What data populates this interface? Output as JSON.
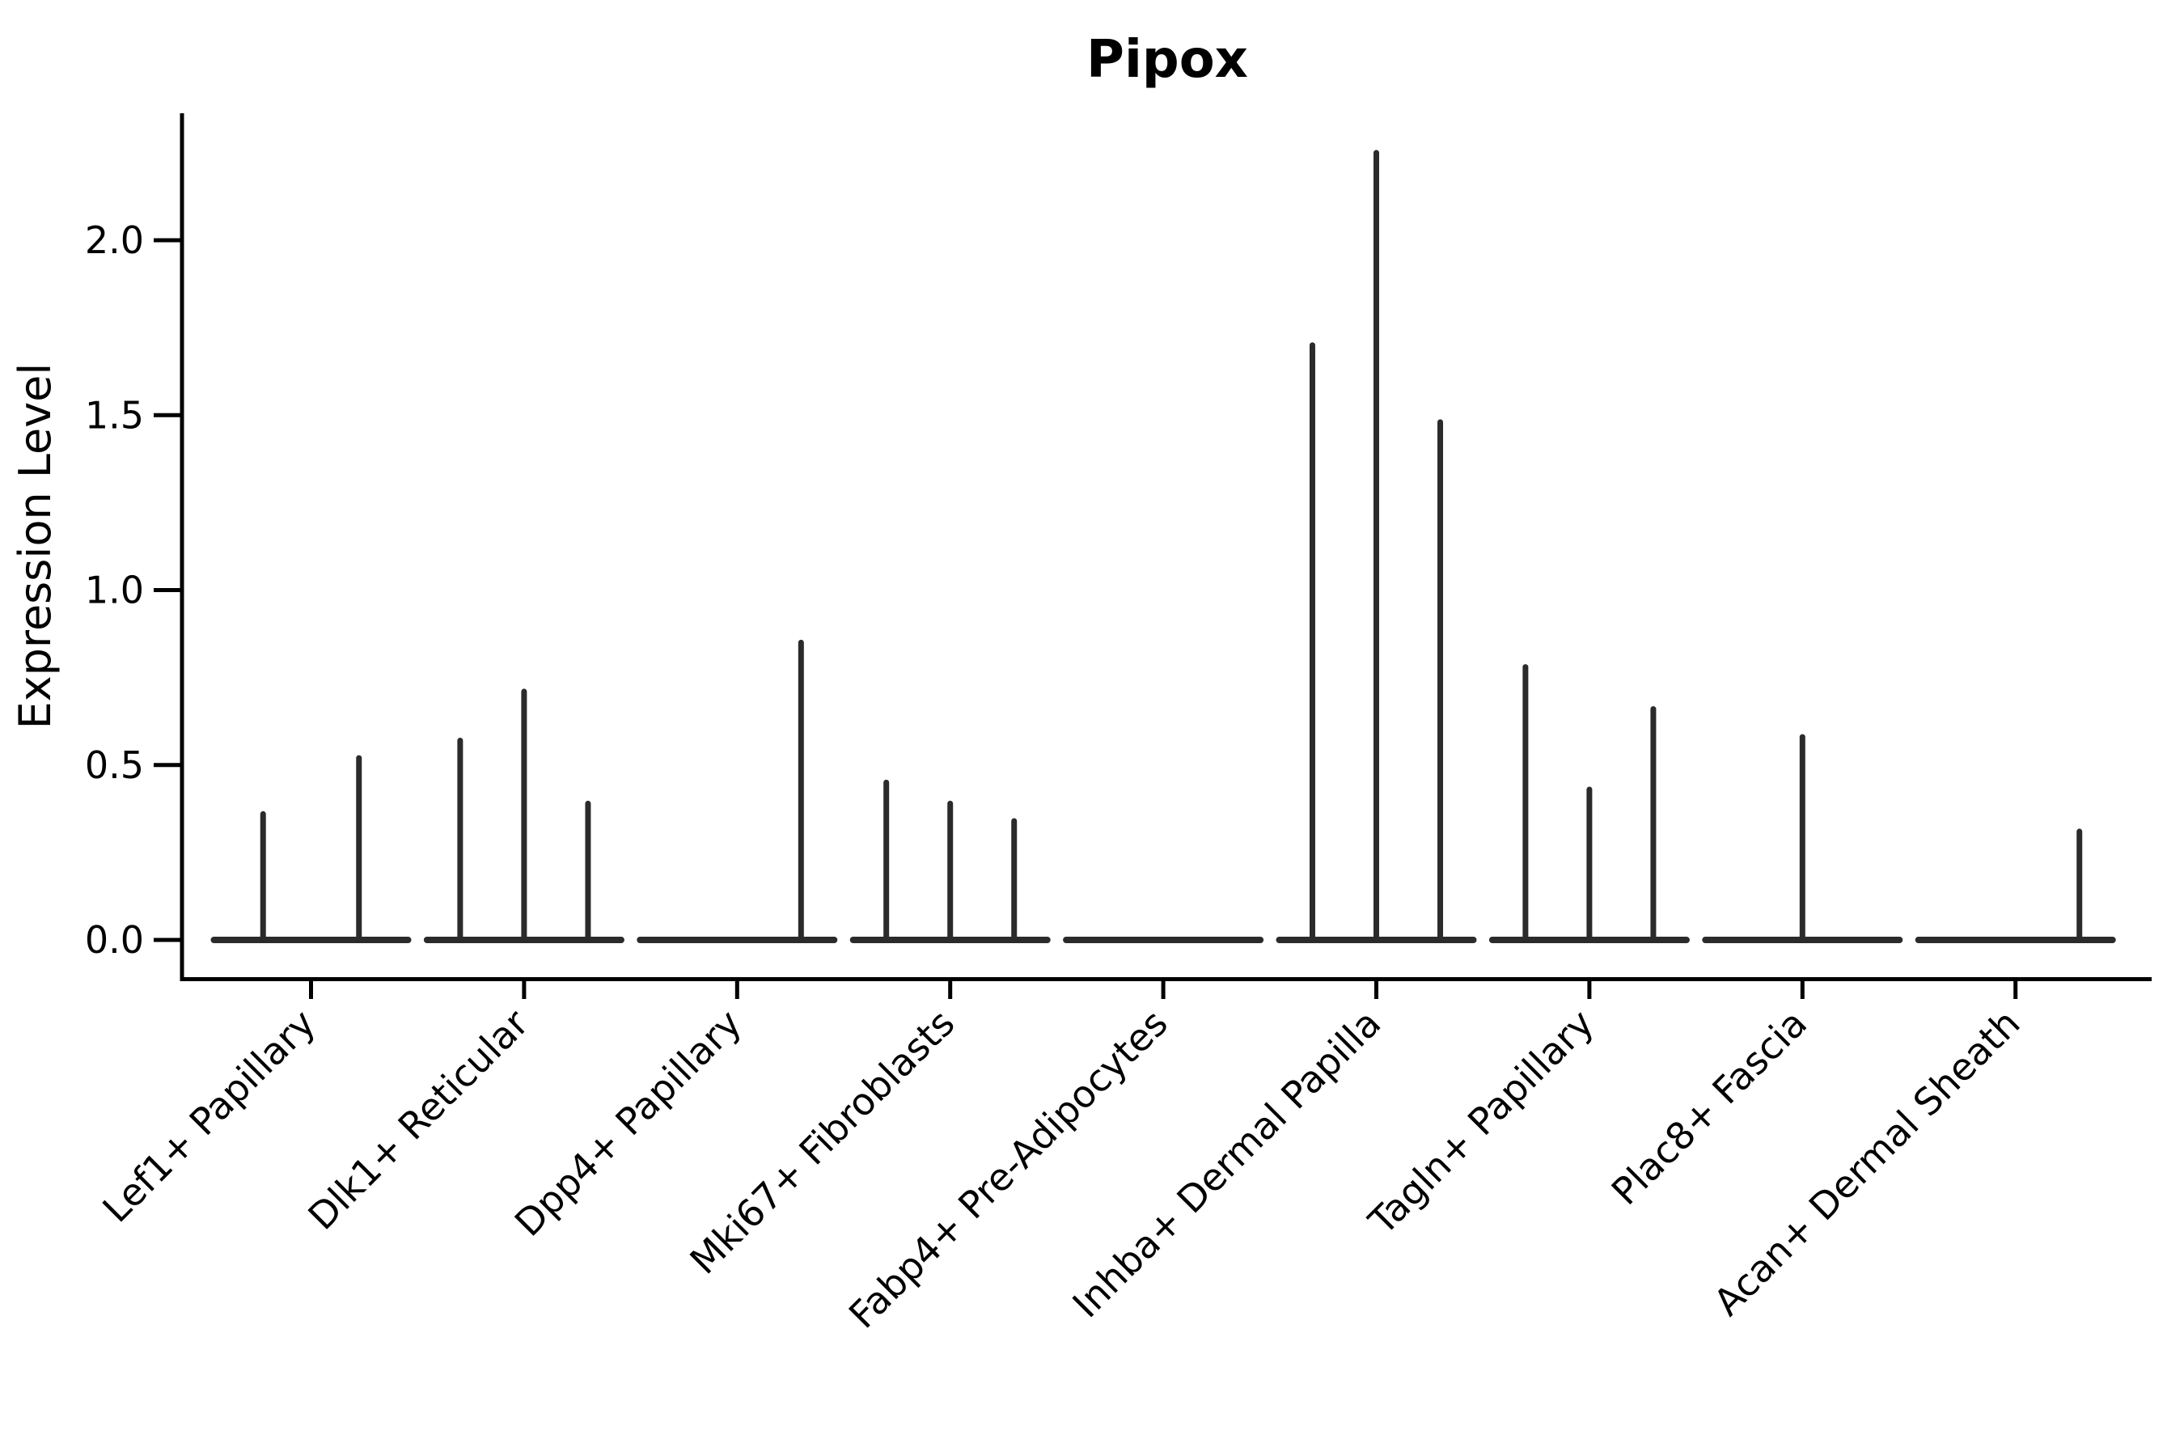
{
  "title": "Pipox",
  "ylabel": "Expression Level",
  "chart_data": {
    "type": "violin",
    "title": "Pipox",
    "xlabel": "",
    "ylabel": "Expression Level",
    "ylim": [
      0,
      2.35
    ],
    "grid": false,
    "legend_position": "none",
    "violin_color": "#2b2b2b",
    "axis_color": "#000000",
    "y_ticks": [
      {
        "value": 0.0,
        "label": "0.0"
      },
      {
        "value": 0.5,
        "label": "0.5"
      },
      {
        "value": 1.0,
        "label": "1.0"
      },
      {
        "value": 1.5,
        "label": "1.5"
      },
      {
        "value": 2.0,
        "label": "2.0"
      }
    ],
    "categories": [
      {
        "label": "Lef1+ Papillary",
        "spikes": [
          {
            "offset": -0.225,
            "value": 0.36
          },
          {
            "offset": 0.225,
            "value": 0.52
          }
        ]
      },
      {
        "label": "Dlk1+ Reticular",
        "spikes": [
          {
            "offset": -0.3,
            "value": 0.57
          },
          {
            "offset": 0.0,
            "value": 0.71
          },
          {
            "offset": 0.3,
            "value": 0.39
          }
        ]
      },
      {
        "label": "Dpp4+ Papillary",
        "spikes": [
          {
            "offset": 0.3,
            "value": 0.85
          }
        ]
      },
      {
        "label": "Mki67+ Fibroblasts",
        "spikes": [
          {
            "offset": -0.3,
            "value": 0.45
          },
          {
            "offset": 0.0,
            "value": 0.39
          },
          {
            "offset": 0.3,
            "value": 0.34
          }
        ]
      },
      {
        "label": "Fabp4+ Pre-Adipocytes",
        "spikes": []
      },
      {
        "label": "Inhba+ Dermal Papilla",
        "spikes": [
          {
            "offset": -0.3,
            "value": 1.7
          },
          {
            "offset": 0.0,
            "value": 2.25
          },
          {
            "offset": 0.3,
            "value": 1.48
          }
        ]
      },
      {
        "label": "Tagln+ Papillary",
        "spikes": [
          {
            "offset": -0.3,
            "value": 0.78
          },
          {
            "offset": 0.0,
            "value": 0.43
          },
          {
            "offset": 0.3,
            "value": 0.66
          }
        ]
      },
      {
        "label": "Plac8+ Fascia",
        "spikes": [
          {
            "offset": 0.0,
            "value": 0.58
          }
        ]
      },
      {
        "label": "Acan+ Dermal Sheath",
        "spikes": [
          {
            "offset": 0.3,
            "value": 0.31
          }
        ]
      }
    ]
  }
}
